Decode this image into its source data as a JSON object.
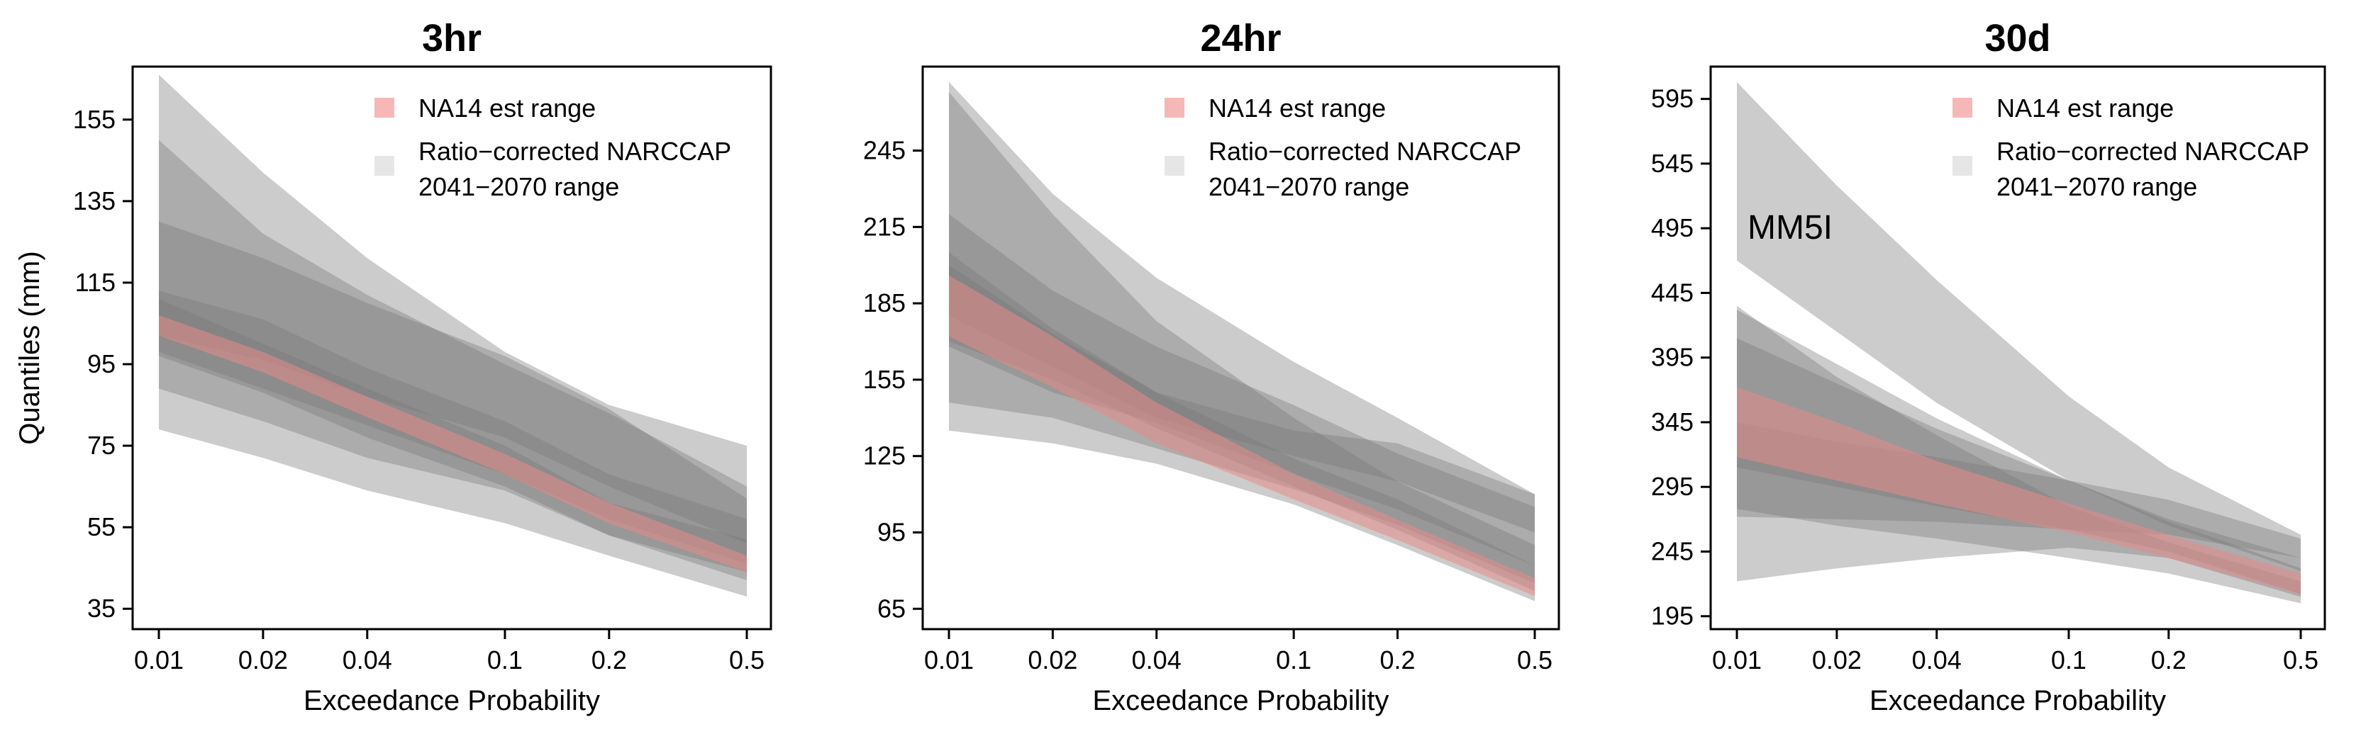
{
  "figure": {
    "ylabel": "Quantiles (mm)",
    "xlabel": "Exceedance Probability",
    "legend": {
      "na14": "NA14 est range",
      "narccap_line1": "Ratio−corrected NARCCAP",
      "narccap_line2": "2041−2070 range"
    },
    "colors": {
      "na14": "#e88a8a",
      "narccap": "#7a7a7a",
      "legend_na14": "#f6b7b7",
      "legend_narccap": "#e6e6e6"
    }
  },
  "chart_data": [
    {
      "type": "area",
      "title": "3hr",
      "xlabel": "Exceedance Probability",
      "ylabel": "Quantiles (mm)",
      "x": [
        0.01,
        0.02,
        0.04,
        0.1,
        0.2,
        0.5
      ],
      "x_tick_labels": [
        "0.01",
        "0.02",
        "0.04",
        "0.1",
        "0.2",
        "0.5"
      ],
      "x_scale": "log",
      "ylim": [
        30,
        168
      ],
      "y_ticks": [
        35,
        55,
        75,
        95,
        115,
        135,
        155
      ],
      "narccap_bands": [
        {
          "upper": [
            166,
            142,
            121,
            98,
            85,
            75
          ],
          "lower": [
            79,
            72,
            64,
            56,
            48,
            38
          ]
        },
        {
          "upper": [
            150,
            127,
            112,
            95,
            83,
            65
          ],
          "lower": [
            89,
            81,
            72,
            64,
            53,
            44
          ]
        },
        {
          "upper": [
            130,
            121,
            110,
            97,
            84,
            62
          ],
          "lower": [
            98,
            89,
            80,
            68,
            57,
            46
          ]
        },
        {
          "upper": [
            113,
            106,
            94,
            81,
            68,
            57
          ],
          "lower": [
            102,
            96,
            87,
            77,
            65,
            51
          ]
        },
        {
          "upper": [
            111,
            100,
            89,
            75,
            61,
            52
          ],
          "lower": [
            97,
            88,
            77,
            65,
            53,
            42
          ]
        }
      ],
      "na14_band": {
        "upper": [
          107,
          98,
          87,
          73,
          61,
          48
        ],
        "lower": [
          102,
          93,
          82,
          68,
          56,
          44
        ]
      },
      "annotation": ""
    },
    {
      "type": "area",
      "title": "24hr",
      "xlabel": "Exceedance Probability",
      "ylabel": "",
      "x": [
        0.01,
        0.02,
        0.04,
        0.1,
        0.2,
        0.5
      ],
      "x_tick_labels": [
        "0.01",
        "0.02",
        "0.04",
        "0.1",
        "0.2",
        "0.5"
      ],
      "x_scale": "log",
      "ylim": [
        57,
        278
      ],
      "y_ticks": [
        65,
        95,
        125,
        155,
        185,
        215,
        245
      ],
      "narccap_bands": [
        {
          "upper": [
            272,
            228,
            195,
            162,
            140,
            110
          ],
          "lower": [
            135,
            130,
            122,
            106,
            90,
            68
          ]
        },
        {
          "upper": [
            268,
            220,
            178,
            140,
            115,
            90
          ],
          "lower": [
            146,
            140,
            128,
            112,
            98,
            75
          ]
        },
        {
          "upper": [
            220,
            190,
            168,
            145,
            126,
            105
          ],
          "lower": [
            168,
            150,
            138,
            118,
            104,
            82
          ]
        },
        {
          "upper": [
            205,
            175,
            150,
            135,
            130,
            110
          ],
          "lower": [
            180,
            160,
            140,
            125,
            115,
            95
          ]
        },
        {
          "upper": [
            200,
            173,
            150,
            124,
            108,
            82
          ],
          "lower": [
            170,
            155,
            136,
            113,
            96,
            72
          ]
        }
      ],
      "na14_band": {
        "upper": [
          196,
          172,
          146,
          118,
          100,
          77
        ],
        "lower": [
          172,
          152,
          130,
          108,
          92,
          70
        ]
      },
      "annotation": ""
    },
    {
      "type": "area",
      "title": "30d",
      "xlabel": "Exceedance Probability",
      "ylabel": "",
      "x": [
        0.01,
        0.02,
        0.04,
        0.1,
        0.2,
        0.5
      ],
      "x_tick_labels": [
        "0.01",
        "0.02",
        "0.04",
        "0.1",
        "0.2",
        "0.5"
      ],
      "x_scale": "log",
      "ylim": [
        185,
        620
      ],
      "y_ticks": [
        195,
        245,
        295,
        345,
        395,
        445,
        495,
        545,
        595
      ],
      "narccap_bands": [
        {
          "upper": [
            608,
            528,
            455,
            365,
            310,
            258
          ],
          "lower": [
            470,
            415,
            360,
            300,
            265,
            230
          ]
        },
        {
          "upper": [
            435,
            380,
            335,
            280,
            252,
            222
          ],
          "lower": [
            222,
            232,
            240,
            248,
            240,
            210
          ]
        },
        {
          "upper": [
            410,
            375,
            340,
            300,
            270,
            240
          ],
          "lower": [
            278,
            265,
            255,
            240,
            228,
            205
          ]
        },
        {
          "upper": [
            345,
            330,
            318,
            300,
            285,
            255
          ],
          "lower": [
            272,
            270,
            268,
            262,
            258,
            240
          ]
        },
        {
          "upper": [
            432,
            390,
            348,
            300,
            268,
            232
          ],
          "lower": [
            310,
            295,
            280,
            262,
            245,
            212
          ]
        }
      ],
      "na14_band": {
        "upper": [
          372,
          345,
          315,
          282,
          258,
          228
        ],
        "lower": [
          318,
          300,
          282,
          260,
          240,
          212
        ]
      },
      "annotation": "MM5I"
    }
  ]
}
